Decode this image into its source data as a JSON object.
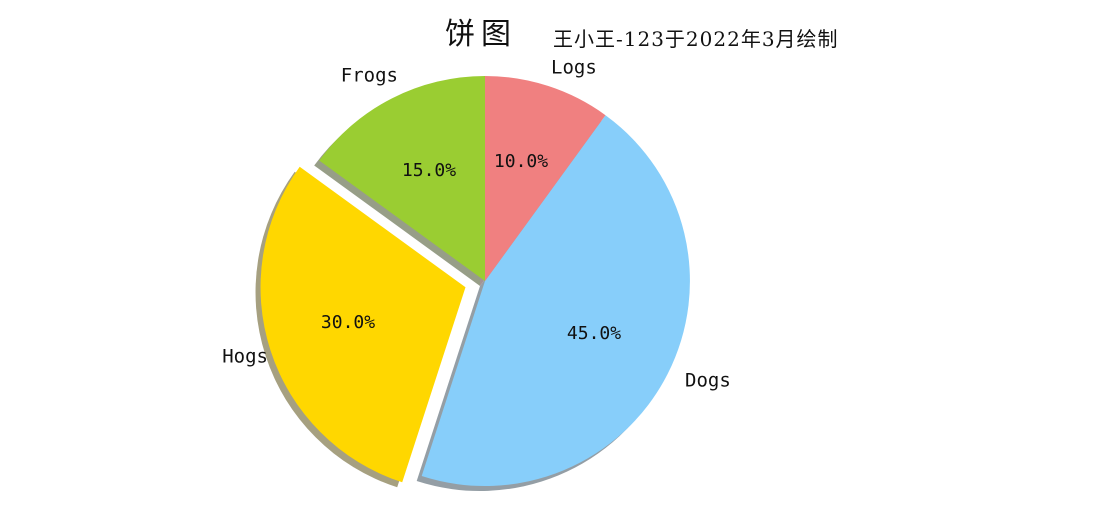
{
  "header": {
    "title": "饼图",
    "annotation": "王小王-123于2022年3月绘制"
  },
  "chart_data": {
    "type": "pie",
    "title": "饼图",
    "annotation": "王小王-123于2022年3月绘制",
    "categories": [
      "Frogs",
      "Hogs",
      "Dogs",
      "Logs"
    ],
    "values": [
      15,
      30,
      45,
      10
    ],
    "value_unit": "percent",
    "autopct_labels": [
      "15.0%",
      "30.0%",
      "45.0%",
      "10.0%"
    ],
    "colors": [
      "#9acd32",
      "#ffd700",
      "#87cefa",
      "#f08080"
    ],
    "explode": [
      0,
      0.1,
      0,
      0
    ],
    "startangle": 90,
    "counterclock": true,
    "shadow": true,
    "legend": "none",
    "background": "#ffffff",
    "text_color": "#111111"
  }
}
